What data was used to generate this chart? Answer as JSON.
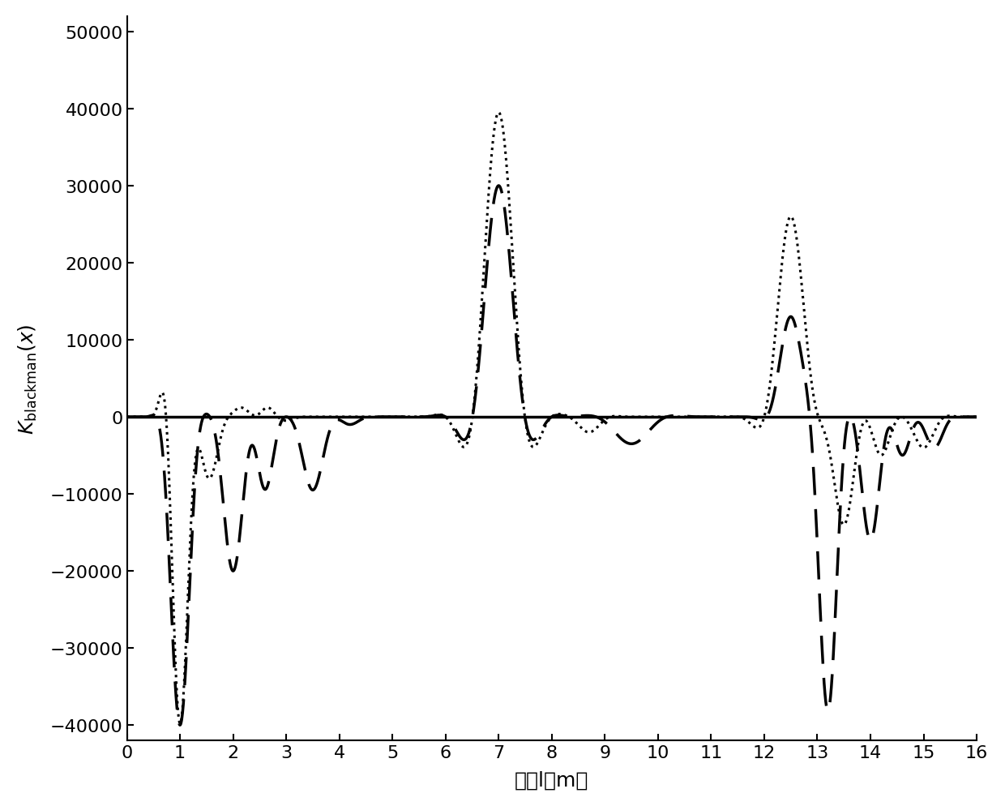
{
  "title": "",
  "xlabel": "距离l（m）",
  "ylabel": "$K_{\\mathrm{blackman}}(x)$",
  "xlim": [
    0,
    16
  ],
  "ylim": [
    -42000,
    52000
  ],
  "xticks": [
    0,
    1,
    2,
    3,
    4,
    5,
    6,
    7,
    8,
    9,
    10,
    11,
    12,
    13,
    14,
    15,
    16
  ],
  "yticks": [
    -40000,
    -30000,
    -20000,
    -10000,
    0,
    10000,
    20000,
    30000,
    40000,
    50000
  ],
  "background_color": "#ffffff",
  "line_color": "#000000",
  "dotted_linewidth": 2.2,
  "dashed_linewidth": 2.5
}
